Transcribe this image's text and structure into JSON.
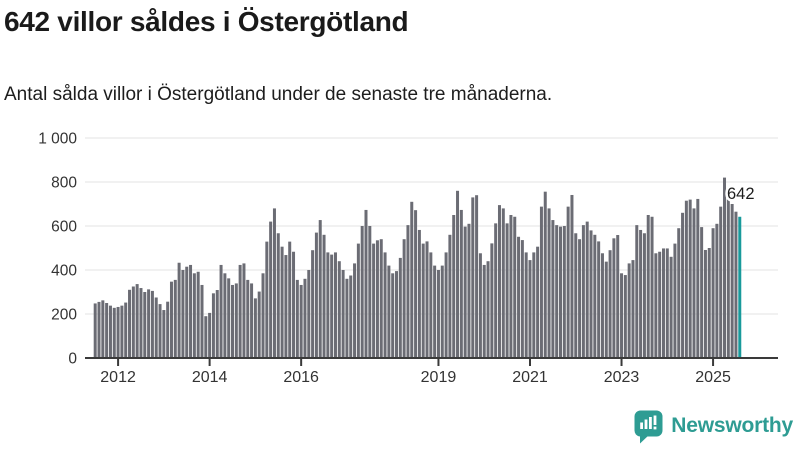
{
  "header": {
    "title": "642 villor såldes i Östergötland",
    "subtitle": "Antal sålda villor i Östergötland under de senaste tre månaderna."
  },
  "chart_data": {
    "type": "bar",
    "title": "642 villor såldes i Östergötland",
    "xlabel": "",
    "ylabel": "",
    "ylim": [
      0,
      1000
    ],
    "grid": true,
    "yticks": [
      0,
      200,
      400,
      600,
      800,
      1000
    ],
    "ytick_labels": [
      "0",
      "200",
      "400",
      "600",
      "800",
      "1 000"
    ],
    "frequency": "monthly",
    "start_month": "2011-07",
    "end_month": "2025-08",
    "xticks": [
      {
        "label": "2012",
        "month_index": 6
      },
      {
        "label": "2014",
        "month_index": 30
      },
      {
        "label": "2016",
        "month_index": 54
      },
      {
        "label": "2019",
        "month_index": 90
      },
      {
        "label": "2021",
        "month_index": 114
      },
      {
        "label": "2023",
        "month_index": 138
      },
      {
        "label": "2025",
        "month_index": 162
      }
    ],
    "bar_color": "#6b6c74",
    "axis_color": "#3a3a3a",
    "grid_color": "#e3e3e3",
    "tick_label_color": "#333333",
    "highlight": {
      "index": 169,
      "value": 642,
      "label": "642",
      "color": "#189a9b"
    },
    "values": [
      248,
      255,
      262,
      250,
      238,
      228,
      232,
      238,
      252,
      310,
      325,
      336,
      318,
      300,
      312,
      305,
      275,
      245,
      218,
      256,
      347,
      355,
      433,
      400,
      415,
      423,
      385,
      392,
      332,
      190,
      205,
      294,
      309,
      423,
      385,
      362,
      332,
      339,
      423,
      430,
      355,
      339,
      271,
      302,
      385,
      529,
      620,
      680,
      567,
      506,
      468,
      529,
      483,
      355,
      332,
      360,
      400,
      490,
      570,
      627,
      560,
      480,
      470,
      480,
      440,
      400,
      360,
      375,
      430,
      520,
      600,
      673,
      600,
      520,
      535,
      540,
      480,
      420,
      385,
      395,
      455,
      540,
      604,
      710,
      672,
      582,
      520,
      530,
      480,
      420,
      400,
      420,
      480,
      560,
      650,
      760,
      673,
      597,
      610,
      730,
      740,
      476,
      423,
      440,
      521,
      612,
      695,
      680,
      612,
      650,
      642,
      551,
      536,
      480,
      445,
      480,
      506,
      688,
      756,
      680,
      627,
      604,
      597,
      600,
      688,
      741,
      567,
      540,
      604,
      620,
      580,
      560,
      530,
      476,
      438,
      490,
      544,
      559,
      385,
      377,
      430,
      445,
      604,
      582,
      567,
      650,
      642,
      476,
      483,
      498,
      498,
      460,
      520,
      590,
      660,
      715,
      720,
      680,
      723,
      595,
      491,
      500,
      590,
      610,
      688,
      820,
      750,
      700,
      665,
      642
    ]
  },
  "footer": {
    "brand": "Newsworthy",
    "brand_color": "#2e9c93",
    "logo_icon": "bar-chart-speech-bubble-icon"
  }
}
